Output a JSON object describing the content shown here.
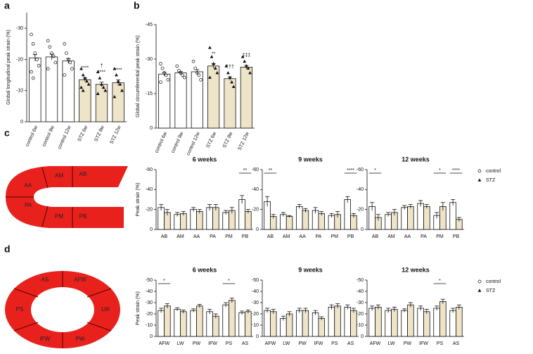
{
  "panel_labels": [
    "a",
    "b",
    "c",
    "d"
  ],
  "diagram_c": {
    "labels": [
      "AB",
      "AM",
      "AA",
      "PA",
      "PM",
      "PB"
    ]
  },
  "diagram_d": {
    "labels": [
      "AFW",
      "LW",
      "PW",
      "IFW",
      "PS",
      "AS"
    ]
  },
  "chart_data": [
    {
      "type": "bar",
      "ylabel": "Global longitudinal peak strain (%)",
      "categories": [
        "control 6w",
        "control 9w",
        "control 12w",
        "STZ 6w",
        "STZ 9w",
        "STZ 12w"
      ],
      "values": [
        -20.5,
        -20.8,
        -19.5,
        -13.5,
        -12,
        -12.5
      ],
      "errors": [
        1,
        0.9,
        0.8,
        0.6,
        0.7,
        0.9
      ],
      "colors": [
        "#ffffff",
        "#ffffff",
        "#ffffff",
        "#eee4c8",
        "#eee4c8",
        "#eee4c8"
      ],
      "markers": [
        "circle",
        "circle",
        "circle",
        "triangle",
        "triangle",
        "triangle"
      ],
      "points": [
        [
          -28,
          -25,
          -22,
          -20,
          -18,
          -16,
          -14
        ],
        [
          -26,
          -24,
          -22,
          -21,
          -19,
          -17
        ],
        [
          -25,
          -22,
          -20,
          -19,
          -17,
          -15
        ],
        [
          -17,
          -15,
          -14,
          -13,
          -12,
          -11,
          -10
        ],
        [
          -16,
          -14,
          -12,
          -11,
          -10,
          -9
        ],
        [
          -17,
          -15,
          -13,
          -12,
          -10,
          -8
        ]
      ],
      "annotations": [
        null,
        null,
        null,
        [
          "****"
        ],
        [
          "†",
          "****"
        ],
        [
          "****"
        ]
      ],
      "ylim": [
        0,
        -35
      ],
      "yticks": [
        -30,
        -20,
        -10,
        0
      ]
    },
    {
      "type": "bar",
      "ylabel": "Global circumferential peak strain (%)",
      "categories": [
        "control 6w",
        "control 9w",
        "control 12w",
        "STZ 6w",
        "STZ 9w",
        "STZ 12w"
      ],
      "values": [
        -23.5,
        -24,
        -24.5,
        -27,
        -21.5,
        -26.5
      ],
      "errors": [
        0.8,
        0.6,
        0.9,
        1,
        0.8,
        0.8
      ],
      "colors": [
        "#ffffff",
        "#ffffff",
        "#ffffff",
        "#eee4c8",
        "#eee4c8",
        "#eee4c8"
      ],
      "markers": [
        "circle",
        "circle",
        "circle",
        "triangle",
        "triangle",
        "triangle"
      ],
      "points": [
        [
          -28,
          -26,
          -24,
          -23,
          -21,
          -20
        ],
        [
          -27,
          -25,
          -24,
          -23,
          -22
        ],
        [
          -29,
          -26,
          -24,
          -23,
          -21
        ],
        [
          -35,
          -31,
          -28,
          -26,
          -24,
          -22
        ],
        [
          -27,
          -24,
          -22,
          -20,
          -18
        ],
        [
          -31,
          -29,
          -27,
          -26,
          -24
        ]
      ],
      "annotations": [
        null,
        null,
        null,
        [
          "**"
        ],
        [
          "†††"
        ],
        [
          "‡‡‡"
        ]
      ],
      "ylim": [
        0,
        -45
      ],
      "yticks": [
        -45,
        -30,
        -15,
        0
      ]
    },
    {
      "type": "grouped_bar",
      "title": "6 weeks",
      "ylabel": "Peak strain (%)",
      "categories": [
        "AB",
        "AM",
        "AA",
        "PA",
        "PM",
        "PB"
      ],
      "series": [
        {
          "color": "#ffffff",
          "marker": "circle",
          "values": [
            -22,
            -15,
            -20,
            -22,
            -17,
            -30
          ],
          "errors": [
            3,
            2,
            2,
            3,
            2,
            4
          ]
        },
        {
          "color": "#eee4c8",
          "marker": "triangle",
          "values": [
            -17,
            -16,
            -18,
            -22,
            -19,
            -18
          ],
          "errors": [
            3,
            2,
            2,
            3,
            3,
            2
          ]
        }
      ],
      "annotations": [
        null,
        null,
        null,
        null,
        null,
        "**"
      ],
      "ylim": [
        0,
        -60
      ],
      "yticks": [
        -60,
        -40,
        -20,
        0
      ]
    },
    {
      "type": "grouped_bar",
      "title": "9 weeks",
      "categories": [
        "AB",
        "AM",
        "AA",
        "PA",
        "PM",
        "PB"
      ],
      "series": [
        {
          "color": "#ffffff",
          "marker": "circle",
          "values": [
            -28,
            -15,
            -23,
            -19,
            -14,
            -30
          ],
          "errors": [
            5,
            2,
            2,
            3,
            2,
            3
          ]
        },
        {
          "color": "#eee4c8",
          "marker": "triangle",
          "values": [
            -13,
            -13,
            -19,
            -16,
            -15,
            -14
          ],
          "errors": [
            2,
            1,
            2,
            2,
            3,
            2
          ]
        }
      ],
      "annotations": [
        "**",
        null,
        null,
        null,
        null,
        "****"
      ],
      "ylim": [
        0,
        -60
      ],
      "yticks": [
        -60,
        -40,
        -20,
        0
      ]
    },
    {
      "type": "grouped_bar",
      "title": "12 weeks",
      "categories": [
        "AB",
        "AM",
        "AA",
        "PA",
        "PM",
        "PB"
      ],
      "series": [
        {
          "name": "control",
          "color": "#ffffff",
          "marker": "circle",
          "values": [
            -23,
            -15,
            -22,
            -26,
            -14,
            -27
          ],
          "errors": [
            4,
            2,
            2,
            3,
            3,
            3
          ]
        },
        {
          "name": "STZ",
          "color": "#eee4c8",
          "marker": "triangle",
          "values": [
            -12,
            -17,
            -23,
            -23,
            -23,
            -10
          ],
          "errors": [
            3,
            3,
            2,
            2,
            4,
            2
          ]
        }
      ],
      "annotations": [
        "*",
        null,
        null,
        null,
        "*",
        "****"
      ],
      "ylim": [
        0,
        -60
      ],
      "yticks": [
        -60,
        -40,
        -20,
        0
      ]
    },
    {
      "type": "grouped_bar",
      "title": "6 weeks",
      "ylabel": "Peak strain (%)",
      "categories": [
        "AFW",
        "LW",
        "PW",
        "IFW",
        "PS",
        "AS"
      ],
      "series": [
        {
          "color": "#ffffff",
          "marker": "circle",
          "values": [
            -23,
            -24,
            -23,
            -22,
            -28,
            -21
          ],
          "errors": [
            2,
            1.5,
            1.5,
            2,
            2,
            1.5
          ]
        },
        {
          "color": "#eee4c8",
          "marker": "triangle",
          "values": [
            -27,
            -22,
            -27,
            -18,
            -32,
            -22
          ],
          "errors": [
            2,
            1.5,
            1.5,
            2,
            2,
            1.5
          ]
        }
      ],
      "annotations": [
        "*",
        null,
        null,
        null,
        "*",
        null
      ],
      "ylim": [
        0,
        -50
      ],
      "yticks": [
        -50,
        -40,
        -30,
        -20,
        -10,
        0
      ]
    },
    {
      "type": "grouped_bar",
      "title": "9 weeks",
      "categories": [
        "AFW",
        "LW",
        "PW",
        "IFW",
        "PS",
        "AS"
      ],
      "series": [
        {
          "color": "#ffffff",
          "marker": "circle",
          "values": [
            -23,
            -16,
            -23,
            -21,
            -26,
            -26
          ],
          "errors": [
            2,
            2,
            2,
            2,
            2,
            2
          ]
        },
        {
          "color": "#eee4c8",
          "marker": "triangle",
          "values": [
            -22,
            -20,
            -23,
            -16,
            -27,
            -23
          ],
          "errors": [
            2,
            2,
            2,
            1.5,
            2,
            2
          ]
        }
      ],
      "annotations": [
        null,
        null,
        null,
        null,
        null,
        null
      ],
      "ylim": [
        0,
        -50
      ],
      "yticks": [
        -50,
        -40,
        -30,
        -20,
        -10,
        0
      ]
    },
    {
      "type": "grouped_bar",
      "title": "12 weeks",
      "categories": [
        "AFW",
        "LW",
        "PW",
        "IFW",
        "PS",
        "AS"
      ],
      "series": [
        {
          "name": "control",
          "color": "#ffffff",
          "marker": "circle",
          "values": [
            -25,
            -23,
            -23,
            -25,
            -25,
            -23
          ],
          "errors": [
            2,
            2,
            1.5,
            2,
            2,
            2
          ]
        },
        {
          "name": "STZ",
          "color": "#eee4c8",
          "marker": "triangle",
          "values": [
            -26,
            -24,
            -28,
            -22,
            -31,
            -26
          ],
          "errors": [
            2,
            2,
            2,
            2,
            2,
            2
          ]
        }
      ],
      "annotations": [
        null,
        null,
        null,
        null,
        "*",
        null
      ],
      "ylim": [
        0,
        -50
      ],
      "yticks": [
        -50,
        -40,
        -30,
        -20,
        -10,
        0
      ]
    }
  ]
}
